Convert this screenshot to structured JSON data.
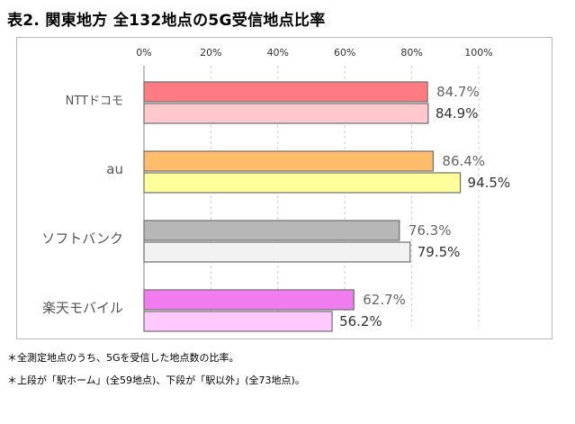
{
  "title": "表2. 関東地方 全132地点の5G受信地点比率",
  "notes": [
    "＊全測定地点のうち、5Gを受信した地点数の比率。",
    "＊上段が「駅ホーム」(全59地点)、下段が「駅以外」(全73地点)。"
  ],
  "chart_data": {
    "type": "bar",
    "orientation": "horizontal",
    "title": "表2. 関東地方 全132地点の5G受信地点比率",
    "xlabel": "",
    "ylabel": "",
    "xlim": [
      0,
      100
    ],
    "tick_values": [
      0,
      20,
      40,
      60,
      80,
      100
    ],
    "tick_labels": [
      "0%",
      "20%",
      "40%",
      "60%",
      "80%",
      "100%"
    ],
    "grid": true,
    "categories": [
      "NTTドコモ",
      "au",
      "ソフトバンク",
      "楽天モバイル"
    ],
    "series": [
      {
        "values": [
          84.7,
          86.4,
          76.3,
          62.7
        ],
        "labels": [
          "84.7%",
          "86.4%",
          "76.3%",
          "62.7%"
        ],
        "colors": [
          "#ff7b84",
          "#ffbd6b",
          "#b7b7b7",
          "#f07cf0"
        ]
      },
      {
        "values": [
          84.9,
          94.5,
          79.5,
          56.2
        ],
        "labels": [
          "84.9%",
          "94.5%",
          "79.5%",
          "56.2%"
        ],
        "colors": [
          "#ffc8cc",
          "#ffff99",
          "#f2f2f2",
          "#ffc8ff"
        ]
      }
    ]
  }
}
